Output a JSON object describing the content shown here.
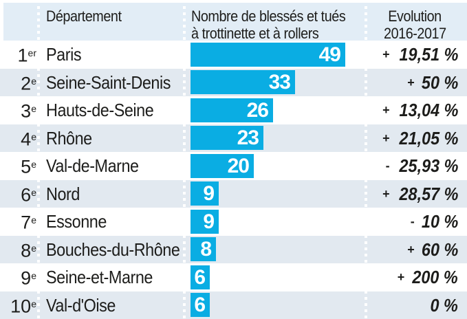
{
  "colors": {
    "bar": "#0aade3",
    "row_stripe": "#e2e9f0",
    "header_background": "#e2edf6",
    "text": "#1d1d1b"
  },
  "header": {
    "department_label": "Département",
    "bar_label_line1": "Nombre de blessés et tués",
    "bar_label_line2": "à trottinette et à rollers",
    "evolution_line1": "Evolution",
    "evolution_line2": "2016-2017"
  },
  "rows": [
    {
      "rank": "1",
      "rank_suffix": "er",
      "department": "Paris",
      "value": 49,
      "evolution_sign": "+",
      "evolution": "19,51 %"
    },
    {
      "rank": "2",
      "rank_suffix": "e",
      "department": "Seine-Saint-Denis",
      "value": 33,
      "evolution_sign": "+",
      "evolution": "50 %"
    },
    {
      "rank": "3",
      "rank_suffix": "e",
      "department": "Hauts-de-Seine",
      "value": 26,
      "evolution_sign": "+",
      "evolution": "13,04 %"
    },
    {
      "rank": "4",
      "rank_suffix": "e",
      "department": "Rhône",
      "value": 23,
      "evolution_sign": "+",
      "evolution": "21,05 %"
    },
    {
      "rank": "5",
      "rank_suffix": "e",
      "department": "Val-de-Marne",
      "value": 20,
      "evolution_sign": "-",
      "evolution": "25,93 %"
    },
    {
      "rank": "6",
      "rank_suffix": "e",
      "department": "Nord",
      "value": 9,
      "evolution_sign": "+",
      "evolution": "28,57 %"
    },
    {
      "rank": "7",
      "rank_suffix": "e",
      "department": "Essonne",
      "value": 9,
      "evolution_sign": "-",
      "evolution": "10 %"
    },
    {
      "rank": "8",
      "rank_suffix": "e",
      "department": "Bouches-du-Rhône",
      "value": 8,
      "evolution_sign": "+",
      "evolution": "60 %"
    },
    {
      "rank": "9",
      "rank_suffix": "e",
      "department": "Seine-et-Marne",
      "value": 6,
      "evolution_sign": "+",
      "evolution": "200 %"
    },
    {
      "rank": "10",
      "rank_suffix": "e",
      "department": "Val-d'Oise",
      "value": 6,
      "evolution_sign": "",
      "evolution": "0 %"
    }
  ],
  "chart_data": {
    "type": "bar",
    "orientation": "horizontal",
    "title": "Nombre de blessés et tués à trottinette et à rollers",
    "categories": [
      "Paris",
      "Seine-Saint-Denis",
      "Hauts-de-Seine",
      "Rhône",
      "Val-de-Marne",
      "Nord",
      "Essonne",
      "Bouches-du-Rhône",
      "Seine-et-Marne",
      "Val-d'Oise"
    ],
    "values": [
      49,
      33,
      26,
      23,
      20,
      9,
      9,
      8,
      6,
      6
    ],
    "series": [
      {
        "name": "Nombre de blessés et tués à trottinette et à rollers",
        "values": [
          49,
          33,
          26,
          23,
          20,
          9,
          9,
          8,
          6,
          6
        ]
      },
      {
        "name": "Evolution 2016-2017 (%)",
        "values": [
          19.51,
          50,
          13.04,
          21.05,
          -25.93,
          28.57,
          -10,
          60,
          200,
          0
        ]
      }
    ],
    "xlabel": "",
    "ylabel": "Département",
    "xlim": [
      0,
      55
    ],
    "grid": false,
    "legend_position": "none",
    "data_labels": true
  }
}
